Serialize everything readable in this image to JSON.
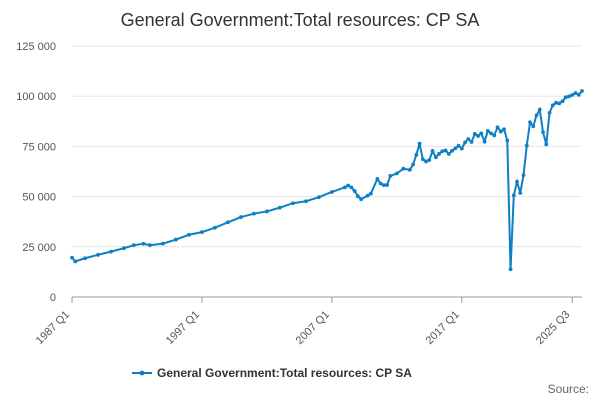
{
  "chart_data": {
    "type": "line",
    "title": "General Government:Total resources: CP SA",
    "xlabel": "",
    "ylabel": "",
    "ylim": [
      0,
      125000
    ],
    "y_ticks": [
      0,
      25000,
      50000,
      75000,
      100000,
      125000
    ],
    "y_tick_labels": [
      "0",
      "25 000",
      "50 000",
      "75 000",
      "100 000",
      "125 000"
    ],
    "x_tick_labels": [
      "1987 Q1",
      "1997 Q1",
      "2007 Q1",
      "2017 Q1",
      "2025 Q3"
    ],
    "x_tick_indices": [
      0,
      40,
      80,
      120,
      154
    ],
    "grid": true,
    "legend_position": "bottom",
    "source_label": "Source:",
    "series": [
      {
        "name": "General Government:Total resources: CP SA",
        "color": "#0f7fc3",
        "anchors": [
          [
            0,
            19600
          ],
          [
            1,
            17700
          ],
          [
            4,
            19300
          ],
          [
            8,
            21000
          ],
          [
            12,
            22600
          ],
          [
            16,
            24300
          ],
          [
            19,
            25800
          ],
          [
            22,
            26500
          ],
          [
            24,
            25800
          ],
          [
            28,
            26600
          ],
          [
            32,
            28600
          ],
          [
            36,
            31000
          ],
          [
            40,
            32300
          ],
          [
            44,
            34500
          ],
          [
            48,
            37200
          ],
          [
            52,
            39800
          ],
          [
            56,
            41500
          ],
          [
            60,
            42600
          ],
          [
            64,
            44500
          ],
          [
            68,
            46700
          ],
          [
            72,
            47700
          ],
          [
            76,
            49700
          ],
          [
            80,
            52300
          ],
          [
            84,
            54600
          ],
          [
            85,
            55500
          ],
          [
            86,
            54600
          ],
          [
            87,
            52800
          ],
          [
            88,
            50200
          ],
          [
            89,
            48700
          ],
          [
            91,
            50500
          ],
          [
            92,
            51500
          ],
          [
            94,
            58800
          ],
          [
            95,
            56500
          ],
          [
            96,
            55700
          ],
          [
            97,
            55800
          ],
          [
            98,
            60300
          ],
          [
            100,
            61500
          ],
          [
            102,
            63900
          ],
          [
            104,
            63300
          ],
          [
            105,
            66000
          ],
          [
            106,
            70800
          ],
          [
            107,
            76400
          ],
          [
            108,
            68600
          ],
          [
            109,
            67500
          ],
          [
            110,
            68200
          ],
          [
            111,
            72700
          ],
          [
            112,
            69600
          ],
          [
            113,
            71300
          ],
          [
            114,
            72600
          ],
          [
            115,
            73000
          ],
          [
            116,
            71200
          ],
          [
            117,
            72800
          ],
          [
            118,
            74000
          ],
          [
            119,
            75300
          ],
          [
            120,
            73900
          ],
          [
            121,
            77000
          ],
          [
            122,
            78700
          ],
          [
            123,
            77200
          ],
          [
            124,
            81200
          ],
          [
            125,
            80200
          ],
          [
            126,
            81500
          ],
          [
            127,
            77400
          ],
          [
            128,
            82700
          ],
          [
            129,
            81500
          ],
          [
            130,
            80500
          ],
          [
            131,
            84500
          ],
          [
            132,
            82400
          ],
          [
            133,
            83500
          ],
          [
            134,
            78000
          ],
          [
            135,
            13800
          ],
          [
            136,
            50600
          ],
          [
            137,
            57400
          ],
          [
            138,
            51800
          ],
          [
            139,
            60700
          ],
          [
            140,
            75400
          ],
          [
            141,
            87000
          ],
          [
            142,
            85000
          ],
          [
            143,
            90500
          ],
          [
            144,
            93300
          ],
          [
            145,
            82100
          ],
          [
            146,
            76000
          ],
          [
            147,
            91700
          ],
          [
            148,
            95500
          ],
          [
            149,
            96700
          ],
          [
            150,
            96400
          ],
          [
            151,
            97500
          ],
          [
            152,
            99500
          ],
          [
            153,
            99900
          ],
          [
            154,
            100600
          ],
          [
            155,
            101600
          ],
          [
            156,
            100700
          ],
          [
            157,
            102600
          ]
        ]
      }
    ]
  }
}
